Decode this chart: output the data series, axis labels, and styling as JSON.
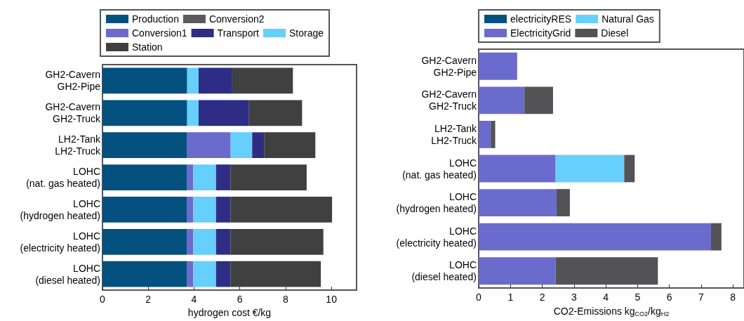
{
  "chart_data": [
    {
      "type": "bar",
      "orientation": "horizontal",
      "stacked": true,
      "xlabel": "hydrogen cost €/kg",
      "categories": [
        "GH2-Cavern\nGH2-Pipe",
        "GH2-Cavern\nGH2-Truck",
        "LH2-Tank\nLH2-Truck",
        "LOHC\n(nat. gas heated)",
        "LOHC\n(hydrogen heated)",
        "LOHC\n(electricity heated)",
        "LOHC\n(diesel heated)"
      ],
      "series": [
        {
          "name": "Production",
          "color": "#04507f",
          "values": [
            3.7,
            3.7,
            3.7,
            3.7,
            3.7,
            3.7,
            3.7
          ]
        },
        {
          "name": "Conversion1",
          "color": "#6b6acd",
          "values": [
            0,
            0,
            1.9,
            0.26,
            0.26,
            0.26,
            0.26
          ]
        },
        {
          "name": "Storage",
          "color": "#66cffc",
          "values": [
            0.5,
            0.5,
            0.94,
            1.0,
            1.0,
            1.0,
            1.0
          ]
        },
        {
          "name": "Conversion2",
          "color": "#5a5a5c",
          "values": [
            0,
            0,
            0,
            0,
            0,
            0,
            0
          ]
        },
        {
          "name": "Transport",
          "color": "#2d2d86",
          "values": [
            1.47,
            2.2,
            0.52,
            0.63,
            0.63,
            0.63,
            0.63
          ]
        },
        {
          "name": "Station",
          "color": "#404040",
          "values": [
            2.65,
            2.32,
            2.24,
            3.33,
            4.44,
            4.06,
            3.95
          ]
        }
      ],
      "xlim": [
        0,
        11.1
      ],
      "xticks": [
        0,
        2,
        4,
        6,
        8,
        10
      ],
      "grid": false,
      "legend": "top"
    },
    {
      "type": "bar",
      "orientation": "horizontal",
      "stacked": true,
      "xlabel": "CO2-Emissions kg$_{CO2}$/kg$_{H2}$",
      "categories": [
        "GH2-Cavern\nGH2-Pipe",
        "GH2-Cavern\nGH2-Truck",
        "LH2-Tank\nLH2-Truck",
        "LOHC\n(nat. gas heated)",
        "LOHC\n(hydrogen heated)",
        "LOHC\n(electricity heated)",
        "LOHC\n(diesel heated)"
      ],
      "series": [
        {
          "name": "electricityRES",
          "color": "#04507f",
          "values": [
            0,
            0,
            0,
            0,
            0,
            0,
            0
          ]
        },
        {
          "name": "ElectricityGrid",
          "color": "#6b6acd",
          "values": [
            1.21,
            1.44,
            0.38,
            2.42,
            2.45,
            7.31,
            2.42
          ]
        },
        {
          "name": "Natural Gas",
          "color": "#66cffc",
          "values": [
            0,
            0,
            0,
            2.16,
            0,
            0,
            0
          ]
        },
        {
          "name": "Diesel",
          "color": "#535356",
          "values": [
            0,
            0.9,
            0.14,
            0.33,
            0.42,
            0.33,
            3.22
          ]
        }
      ],
      "xlim": [
        0,
        8.35
      ],
      "xticks": [
        0,
        1,
        2,
        3,
        4,
        5,
        6,
        7,
        8
      ],
      "grid": false,
      "legend": "top"
    }
  ]
}
